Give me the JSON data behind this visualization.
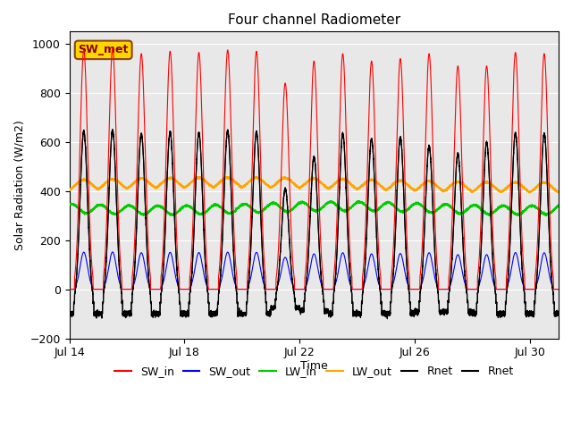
{
  "title": "Four channel Radiometer",
  "xlabel": "Time",
  "ylabel": "Solar Radiation (W/m2)",
  "ylim": [
    -200,
    1050
  ],
  "yticks": [
    -200,
    0,
    200,
    400,
    600,
    800,
    1000
  ],
  "start_day": 14,
  "end_day": 31,
  "num_days": 18,
  "xtick_days": [
    14,
    18,
    22,
    26,
    30
  ],
  "colors": {
    "SW_in": "#ff0000",
    "SW_out": "#0000ff",
    "LW_in": "#00cc00",
    "LW_out": "#ffa500",
    "Rnet1": "#000000",
    "Rnet2": "#000000"
  },
  "annotation": "SW_met",
  "annotation_color": "#8B0000",
  "annotation_bg": "#FFD700",
  "annotation_border": "#8B4513",
  "bg_color": "#e8e8e8",
  "grid_color": "#ffffff",
  "figsize": [
    6.4,
    4.8
  ],
  "dpi": 100
}
